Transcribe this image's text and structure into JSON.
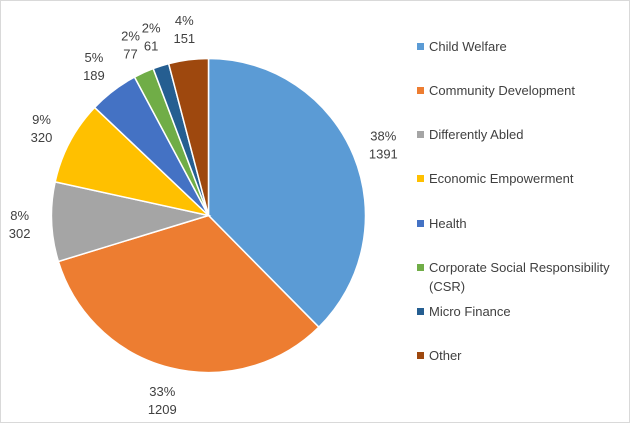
{
  "chart_data": {
    "type": "pie",
    "title": "",
    "slices": [
      {
        "label": "Child Welfare",
        "value": 1391,
        "percent": "38%",
        "color": "#5B9BD5"
      },
      {
        "label": "Community Development",
        "value": 1209,
        "percent": "33%",
        "color": "#ED7D31"
      },
      {
        "label": "Differently Abled",
        "value": 302,
        "percent": "8%",
        "color": "#A5A5A5"
      },
      {
        "label": "Economic Empowerment",
        "value": 320,
        "percent": "9%",
        "color": "#FFC000"
      },
      {
        "label": "Health",
        "value": 189,
        "percent": "5%",
        "color": "#4472C4"
      },
      {
        "label": "Corporate Social Responsibility (CSR)",
        "value": 77,
        "percent": "2%",
        "color": "#70AD47"
      },
      {
        "label": "Micro Finance",
        "value": 61,
        "percent": "2%",
        "color": "#255E91"
      },
      {
        "label": "Other",
        "value": 151,
        "percent": "4%",
        "color": "#9E480E"
      }
    ],
    "legend_position": "right",
    "start_angle": "12 o'clock",
    "direction": "clockwise"
  }
}
